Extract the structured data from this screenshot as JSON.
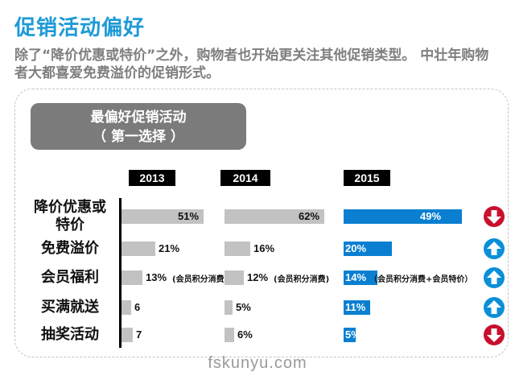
{
  "title": "促销活动偏好",
  "subtitle": "除了“降价优惠或特价”之外，购物者也开始更关注其他促销类型。 中壮年购物者大都喜爱免费溢价的促销形式。",
  "panel": {
    "header_line1": "最偏好促销活动",
    "header_line2": "（ 第一选择 ）"
  },
  "watermark": "fskunyu.com",
  "chart_data": {
    "type": "bar",
    "orientation": "horizontal",
    "categories": [
      "降价优惠或特价",
      "免费溢价",
      "会员福利",
      "买满就送",
      "抽奖活动"
    ],
    "series": [
      {
        "name": "2013",
        "values": [
          51,
          21,
          13,
          6,
          7
        ],
        "labels": [
          "51%",
          "21%",
          "13%",
          "6",
          "7"
        ],
        "notes": [
          "",
          "",
          "(会员积分消费)",
          "",
          ""
        ],
        "color": "#c2c2c2"
      },
      {
        "name": "2014",
        "values": [
          62,
          16,
          12,
          5,
          6
        ],
        "labels": [
          "62%",
          "16%",
          "12%",
          "5%",
          "6%"
        ],
        "notes": [
          "",
          "",
          "(会员积分消费)",
          "",
          ""
        ],
        "color": "#c2c2c2"
      },
      {
        "name": "2015",
        "values": [
          49,
          20,
          14,
          11,
          5
        ],
        "labels": [
          "49%",
          "20%",
          "14%",
          "11%",
          "5%"
        ],
        "notes": [
          "",
          "",
          "（会员积分消费+会员特价）",
          "",
          ""
        ],
        "color": "#0a7fd1"
      }
    ],
    "trend": [
      "down",
      "up",
      "up",
      "up",
      "down"
    ],
    "trend_colors": {
      "up": "#0a8fd8",
      "down": "#c8102e"
    }
  }
}
